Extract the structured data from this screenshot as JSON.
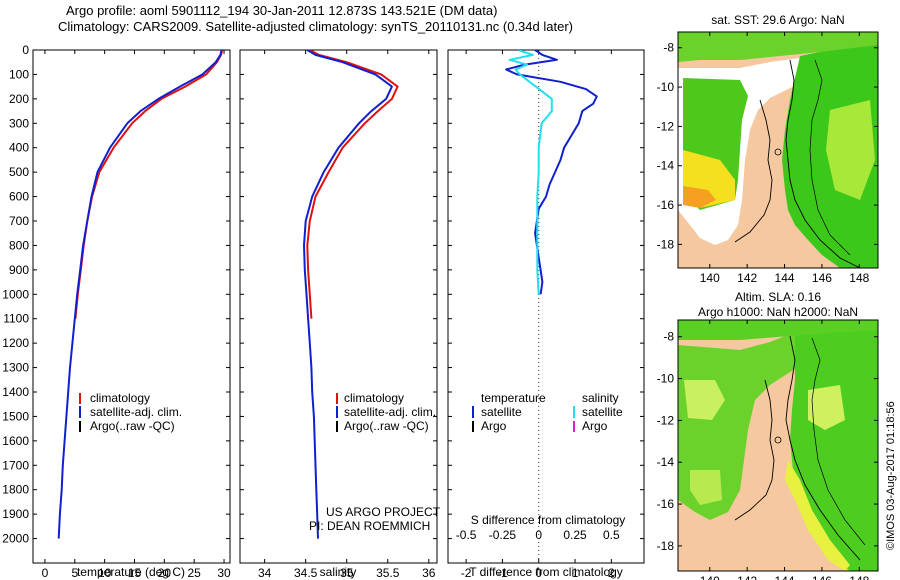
{
  "header": {
    "title_line1": "Argo profile: aoml 5901112_194 30-Jan-2011 12.873S 143.521E (DM data)",
    "title_line2": "Climatology: CARS2009. Satellite-adjusted climatology: synTS_20110131.nc (0.34d later)"
  },
  "map_titles": {
    "sst": "sat. SST: 29.6 Argo: NaN",
    "sla_line1": "Altim. SLA: 0.16",
    "sla_line2": "Argo h1000: NaN h2000: NaN"
  },
  "credit": "©IMOS 03-Aug-2017 01:18:56",
  "project_note": {
    "line1": "US ARGO PROJECT",
    "line2": "PI: DEAN ROEMMICH"
  },
  "colors": {
    "climatology": "#e01010",
    "satellite": "#1020d0",
    "argo": "#000000",
    "sat_salinity": "#20e0f0",
    "argo_salinity": "#e020c0",
    "land": "#f5c8a0",
    "zero_line": "#333333"
  },
  "chart_data": [
    {
      "type": "line",
      "name": "temperature",
      "xlabel": "temperature (deg C)",
      "xlim": [
        -2,
        31
      ],
      "xticks": [
        0,
        5,
        10,
        15,
        20,
        25,
        30
      ],
      "ylim": [
        0,
        2100
      ],
      "yticks": [
        0,
        100,
        200,
        300,
        400,
        500,
        600,
        700,
        800,
        900,
        1000,
        1100,
        1200,
        1300,
        1400,
        1500,
        1600,
        1700,
        1800,
        1900,
        2000
      ],
      "legend": [
        "climatology",
        "satellite-adj. clim.",
        "Argo(..raw -QC)"
      ],
      "legend_position": "lower-center",
      "series": [
        {
          "name": "climatology",
          "color": "#e01010",
          "depth": [
            0,
            20,
            50,
            100,
            150,
            200,
            250,
            300,
            400,
            500,
            600,
            700,
            800,
            900,
            1000,
            1100
          ],
          "values": [
            29.7,
            29.5,
            28.8,
            27.0,
            23.5,
            19.5,
            16.8,
            14.6,
            11.5,
            9.1,
            7.9,
            7.1,
            6.5,
            6.0,
            5.5,
            5.1
          ]
        },
        {
          "name": "satellite-adj. clim.",
          "color": "#1020d0",
          "depth": [
            0,
            20,
            50,
            100,
            150,
            200,
            250,
            300,
            400,
            500,
            600,
            700,
            800,
            900,
            1000,
            1100,
            1200,
            1300,
            1400,
            1500,
            1600,
            1700,
            1800,
            1900,
            2000
          ],
          "values": [
            29.6,
            29.4,
            28.6,
            26.4,
            22.6,
            19.0,
            16.0,
            13.8,
            10.9,
            8.8,
            7.8,
            7.1,
            6.4,
            5.9,
            5.4,
            5.0,
            4.6,
            4.2,
            3.9,
            3.6,
            3.3,
            3.0,
            2.8,
            2.5,
            2.3
          ]
        }
      ]
    },
    {
      "type": "line",
      "name": "salinity",
      "xlabel": "salinity",
      "xlim": [
        33.7,
        36.1
      ],
      "xticks": [
        34,
        34.5,
        35,
        35.5,
        36
      ],
      "ylim": [
        0,
        2100
      ],
      "legend": [
        "climatology",
        "satellite-adj. clim.",
        "Argo(..raw -QC)"
      ],
      "legend_position": "lower-center",
      "series": [
        {
          "name": "climatology",
          "color": "#e01010",
          "depth": [
            0,
            20,
            50,
            100,
            150,
            200,
            250,
            300,
            400,
            500,
            600,
            700,
            800,
            900,
            1000,
            1100
          ],
          "values": [
            34.55,
            34.66,
            35.0,
            35.42,
            35.62,
            35.55,
            35.38,
            35.22,
            34.95,
            34.78,
            34.62,
            34.55,
            34.52,
            34.53,
            34.55,
            34.57
          ]
        },
        {
          "name": "satellite-adj. clim.",
          "color": "#1020d0",
          "depth": [
            0,
            20,
            50,
            100,
            150,
            200,
            250,
            300,
            400,
            500,
            600,
            700,
            800,
            900,
            1000,
            1100,
            1200,
            1300,
            1400,
            1500,
            1600,
            1700,
            1800,
            1900,
            2000
          ],
          "values": [
            34.52,
            34.62,
            34.95,
            35.35,
            35.55,
            35.48,
            35.3,
            35.15,
            34.9,
            34.72,
            34.58,
            34.5,
            34.48,
            34.49,
            34.51,
            34.53,
            34.55,
            34.57,
            34.58,
            34.6,
            34.61,
            34.62,
            34.63,
            34.64,
            34.65
          ]
        }
      ]
    },
    {
      "type": "line",
      "name": "difference",
      "xlabel": "T difference from climatology",
      "xlabel_top": "S difference from climatology",
      "xlim": [
        -2.5,
        2.9
      ],
      "xticks": [
        -2,
        -1,
        0,
        1,
        2
      ],
      "xticks_top": [
        -0.5,
        -0.25,
        0,
        0.25,
        0.5
      ],
      "xticks_top_labels": [
        "-0.5",
        "-0.25",
        "0",
        "0.25",
        "0.5"
      ],
      "ylim": [
        0,
        2100
      ],
      "legend": {
        "temperature_header": "temperature",
        "salinity_header": "salinity",
        "items": [
          "satellite",
          "Argo",
          "satellite",
          "Argo"
        ]
      },
      "legend_position": "lower-center",
      "series": [
        {
          "name": "temperature satellite",
          "color": "#1020d0",
          "depth": [
            0,
            20,
            40,
            60,
            80,
            100,
            130,
            160,
            190,
            220,
            250,
            300,
            350,
            400,
            450,
            500,
            550,
            600,
            650,
            700,
            750,
            800,
            850,
            900,
            950,
            1000
          ],
          "values": [
            -0.1,
            0.1,
            0.5,
            -0.4,
            -0.9,
            -0.6,
            0.6,
            1.3,
            1.6,
            1.5,
            1.2,
            1.1,
            0.9,
            0.7,
            0.6,
            0.45,
            0.3,
            0.2,
            0.0,
            -0.05,
            -0.1,
            -0.05,
            0.0,
            0.05,
            0.1,
            0.05
          ]
        },
        {
          "name": "salinity satellite",
          "color": "#20e0f0",
          "depth": [
            0,
            20,
            40,
            60,
            80,
            100,
            150,
            200,
            250,
            300,
            350,
            400,
            500,
            600,
            700,
            800,
            900,
            1000
          ],
          "values": [
            -0.14,
            -0.04,
            -0.2,
            -0.08,
            -0.16,
            -0.13,
            -0.02,
            0.09,
            0.09,
            0.02,
            0.01,
            0.0,
            0.0,
            -0.01,
            -0.01,
            -0.01,
            -0.01,
            0.0
          ]
        }
      ]
    },
    {
      "type": "heatmap",
      "name": "sst-map",
      "xticks": [
        140,
        142,
        144,
        146,
        148
      ],
      "yticks": [
        -8,
        -10,
        -12,
        -14,
        -16,
        -18
      ],
      "xlim": [
        138.3,
        149.0
      ],
      "ylim": [
        -19.2,
        -7.2
      ]
    },
    {
      "type": "heatmap",
      "name": "sla-map",
      "xticks": [
        140,
        142,
        144,
        146,
        148
      ],
      "yticks": [
        -8,
        -10,
        -12,
        -14,
        -16,
        -18
      ],
      "xlim": [
        138.3,
        149.0
      ],
      "ylim": [
        -19.2,
        -7.2
      ]
    }
  ]
}
